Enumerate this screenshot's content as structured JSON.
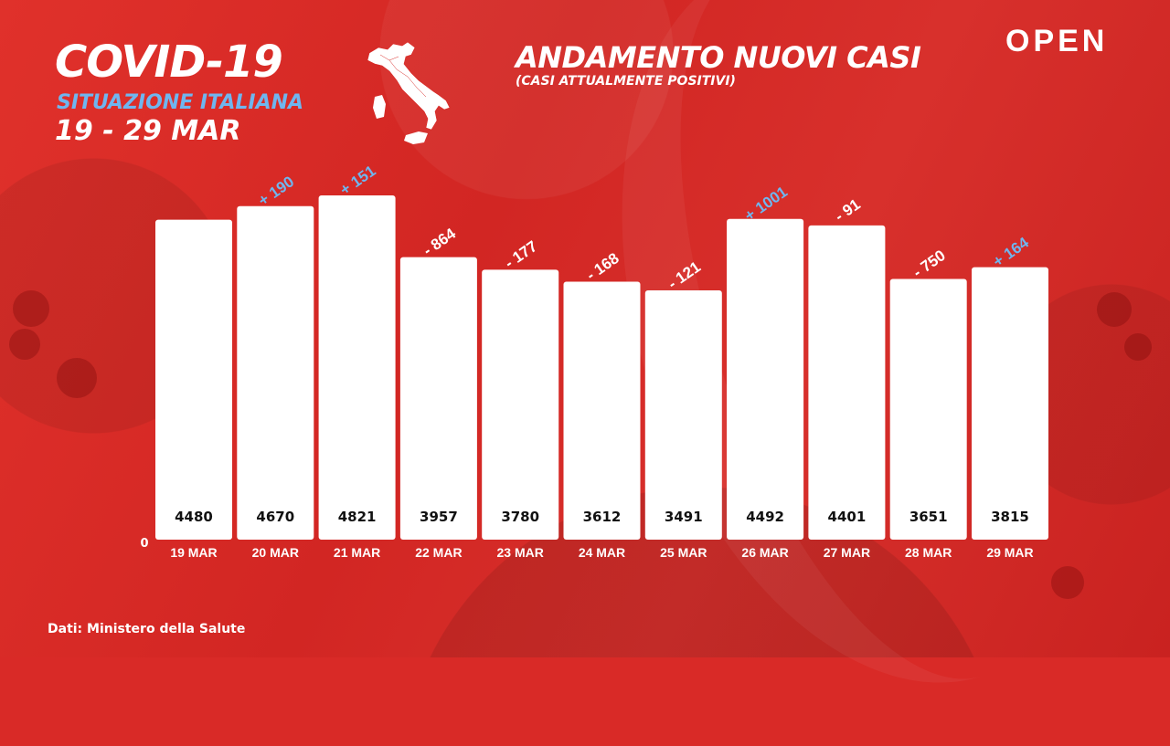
{
  "header": {
    "title": "COVID-19",
    "subtitle": "SITUAZIONE ITALIANA",
    "date_range": "19 - 29 MAR"
  },
  "chart_heading": {
    "title": "ANDAMENTO NUOVI CASI",
    "subtitle": "(CASI ATTUALMENTE POSITIVI)"
  },
  "brand": {
    "logo_text": "OPEN"
  },
  "footer": {
    "source": "Dati: Ministero della Salute"
  },
  "colors": {
    "background": "#d92a27",
    "bar": "#ffffff",
    "positive_change": "#6fb6ef",
    "negative_change": "#ffffff",
    "bar_label": "#111111"
  },
  "chart_data": {
    "type": "bar",
    "title": "ANDAMENTO NUOVI CASI",
    "subtitle": "(CASI ATTUALMENTE POSITIVI)",
    "categories": [
      "19 MAR",
      "20 MAR",
      "21 MAR",
      "22 MAR",
      "23 MAR",
      "24 MAR",
      "25 MAR",
      "26 MAR",
      "27 MAR",
      "28 MAR",
      "29 MAR"
    ],
    "values": [
      4480,
      4670,
      4821,
      3957,
      3780,
      3612,
      3491,
      4492,
      4401,
      3651,
      3815
    ],
    "change_labels": [
      null,
      "+ 190",
      "+ 151",
      "- 864",
      "- 177",
      "- 168",
      "- 121",
      "+ 1001",
      "- 91",
      "- 750",
      "+ 164"
    ],
    "y_tick_labels": [
      "0"
    ],
    "ylim": [
      0,
      5000
    ],
    "grid": false,
    "legend": "none"
  }
}
